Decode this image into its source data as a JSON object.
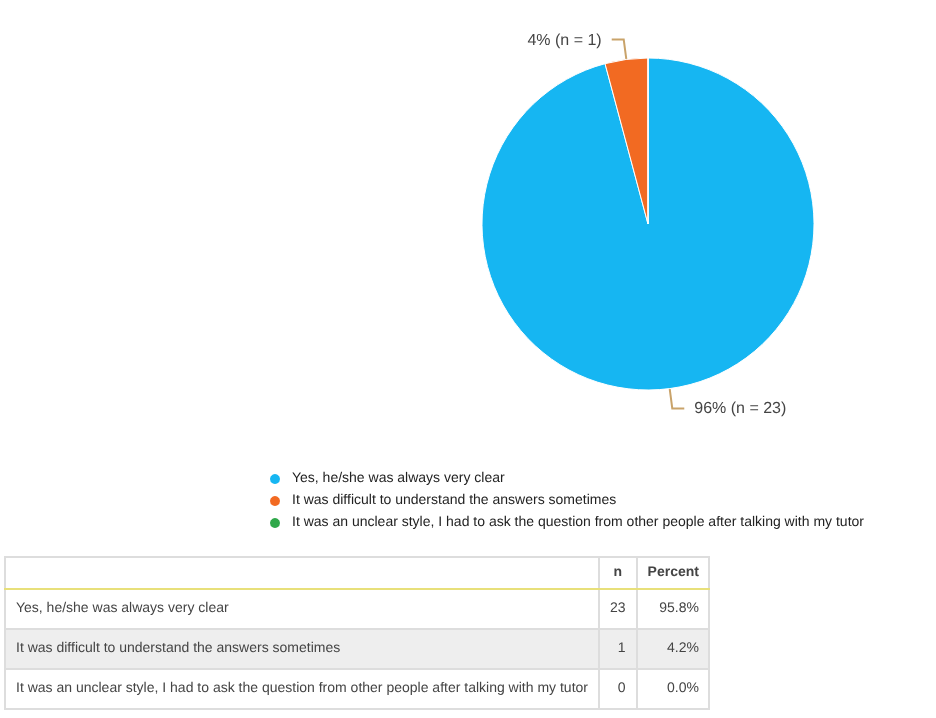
{
  "chart_data": {
    "type": "pie",
    "categories": [
      "Yes, he/she was always very clear",
      "It was difficult to understand the answers sometimes",
      "It was an unclear style, I had to ask the question from other people after talking with my tutor"
    ],
    "values": [
      23,
      1,
      0
    ],
    "colors": [
      "#16b6f2",
      "#f26a22",
      "#2fa84a"
    ],
    "value_labels": [
      "96% (n = 23)",
      "4% (n = 1)",
      null
    ],
    "legend": "bottom",
    "annotations": [
      "n",
      "Percent",
      "23",
      "95.8%",
      "1",
      "4.2%",
      "0",
      "0.0%"
    ]
  }
}
